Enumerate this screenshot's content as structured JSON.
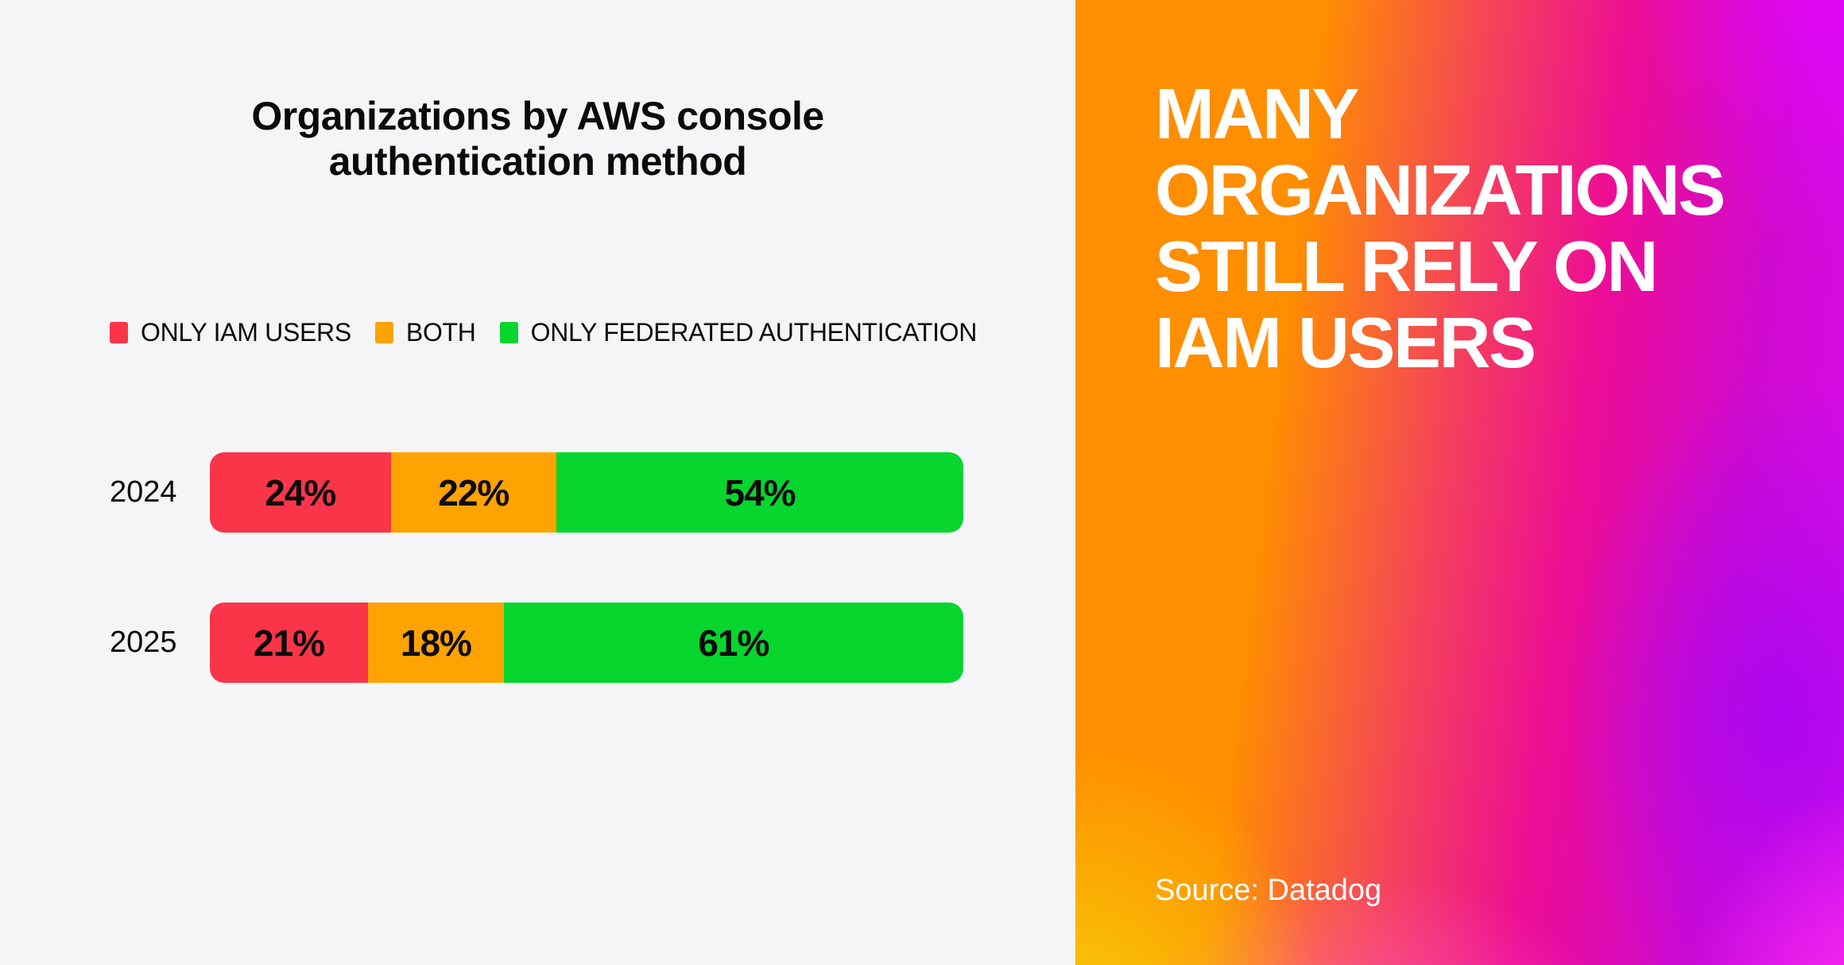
{
  "theme": {
    "page_bg": "#F5F5F7",
    "text_dark": "#0B0B0B",
    "text_light": "#FFFFFF",
    "gradient": {
      "orange": "#FF8E00",
      "yellow": "#F7CE08",
      "coral": "#F4405C",
      "magenta": "#ED0D94",
      "purple": "#A806F0",
      "violet": "#E206FF",
      "pink": "#FF5FC8",
      "bright_pink": "#FF2DEB",
      "mid_purple": "#CF0ACF",
      "deep_violet": "#D80DF2"
    }
  },
  "left_panel": {
    "title_lines": [
      "Organizations by AWS console",
      "authentication method"
    ]
  },
  "right_panel": {
    "headline_lines": [
      "MANY",
      "ORGANIZATIONS",
      "STILL RELY ON",
      "IAM USERS"
    ],
    "source": "Source: Datadog"
  },
  "chart_data": {
    "type": "bar",
    "orientation": "horizontal",
    "stacked": true,
    "title": "Organizations by AWS console authentication method",
    "categories": [
      "2024",
      "2025"
    ],
    "series": [
      {
        "name": "ONLY IAM USERS",
        "color": "#FA3549",
        "values": [
          24,
          21
        ]
      },
      {
        "name": "BOTH",
        "color": "#FFA303",
        "values": [
          22,
          18
        ]
      },
      {
        "name": "ONLY FEDERATED AUTHENTICATION",
        "color": "#06D62E",
        "values": [
          54,
          61
        ]
      }
    ],
    "unit": "%",
    "value_range": [
      0,
      100
    ],
    "grid": false,
    "legend_position": "top-left",
    "source": "Datadog"
  }
}
